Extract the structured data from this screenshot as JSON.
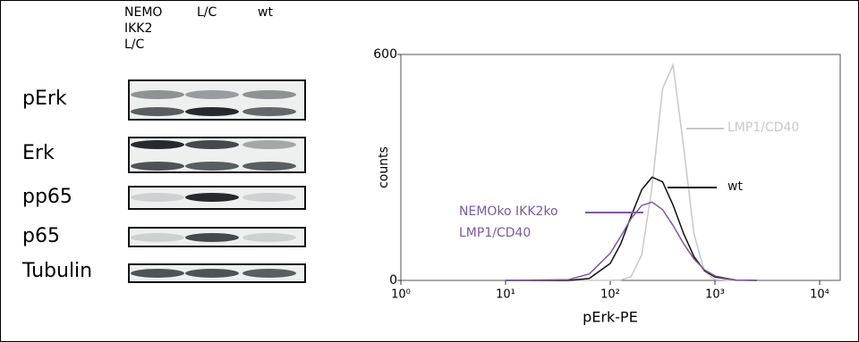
{
  "blot": {
    "lanes": [
      "NEMO IKK2 L/C",
      "L/C",
      "wt"
    ],
    "rows": [
      "pErk",
      "Erk",
      "pp65",
      "p65",
      "Tubulin"
    ]
  },
  "chart_data": {
    "type": "line",
    "xlabel": "pErk-PE",
    "ylabel": "counts",
    "xscale": "log",
    "x": [
      10,
      40,
      63,
      100,
      126,
      158,
      200,
      251,
      316,
      398,
      501,
      631,
      794,
      1000,
      1585,
      2512
    ],
    "series": [
      {
        "name": "LMP1/CD40",
        "color": "#c8c8c8",
        "values": [
          0,
          0,
          0,
          0,
          1,
          10,
          68,
          250,
          509,
          572,
          357,
          123,
          24,
          2,
          0,
          0
        ]
      },
      {
        "name": "wt",
        "color": "#111111",
        "values": [
          0,
          0,
          5,
          45,
          97,
          170,
          241,
          274,
          262,
          200,
          125,
          63,
          26,
          9,
          1,
          0
        ]
      },
      {
        "name": "NEMOko IKK2ko LMP1/CD40",
        "color": "#7b5aa0",
        "values": [
          0,
          2,
          17,
          72,
          117,
          164,
          199,
          208,
          188,
          146,
          98,
          57,
          28,
          12,
          1,
          0
        ]
      }
    ],
    "xlim": [
      1,
      10000
    ],
    "xticks": [
      {
        "value": 1,
        "label": "10⁰"
      },
      {
        "value": 10,
        "label": "10¹"
      },
      {
        "value": 100,
        "label": "10²"
      },
      {
        "value": 1000,
        "label": "10³"
      },
      {
        "value": 10000,
        "label": "10⁴"
      }
    ],
    "ylim": [
      0,
      600
    ],
    "yticks": [
      0,
      600
    ]
  }
}
